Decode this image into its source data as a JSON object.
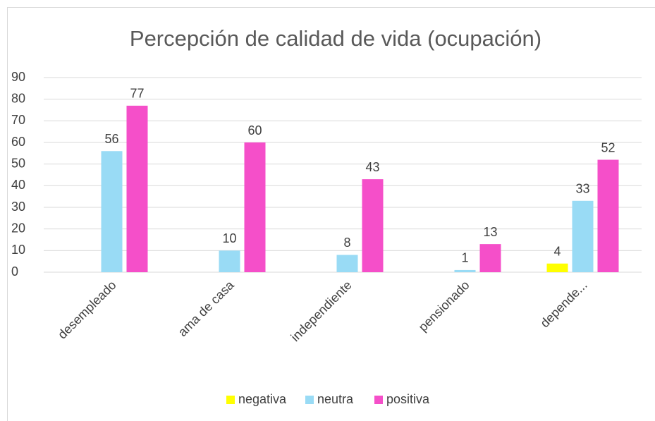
{
  "chart_data": {
    "type": "bar",
    "title": "Percepción de calidad de vida (ocupación)",
    "categories": [
      "desempleado",
      "ama de casa",
      "independiente",
      "pensionado",
      "depende..."
    ],
    "series": [
      {
        "name": "negativa",
        "color": "#ffff00",
        "values": [
          null,
          null,
          null,
          null,
          4
        ]
      },
      {
        "name": "neutra",
        "color": "#99dbf5",
        "values": [
          56,
          10,
          8,
          1,
          33
        ]
      },
      {
        "name": "positiva",
        "color": "#f54fc9",
        "values": [
          77,
          60,
          43,
          13,
          52
        ]
      }
    ],
    "ylim": [
      0,
      90
    ],
    "yticks": [
      0,
      10,
      20,
      30,
      40,
      50,
      60,
      70,
      80,
      90
    ],
    "grid": true,
    "legend": "bottom"
  }
}
